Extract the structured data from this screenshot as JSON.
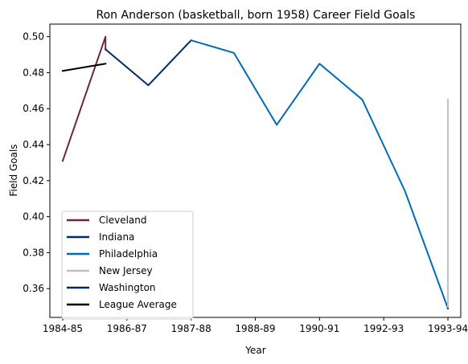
{
  "chart_data": {
    "type": "line",
    "title": "Ron Anderson (basketball, born 1958) Career Field Goals",
    "xlabel": "Year",
    "ylabel": "Field Goals",
    "x_ticks": [
      "1984-85",
      "1986-87",
      "1987-88",
      "1988-89",
      "1990-91",
      "1992-93",
      "1993-94"
    ],
    "xlim": [
      -0.3,
      9.3
    ],
    "ylim": [
      0.344,
      0.507
    ],
    "y_ticks": [
      0.36,
      0.38,
      0.4,
      0.42,
      0.44,
      0.46,
      0.48,
      0.5
    ],
    "grid": false,
    "legend_position": "lower-left",
    "series": [
      {
        "name": "Cleveland",
        "color": "#6f263d",
        "points": [
          [
            0,
            0.431
          ],
          [
            1,
            0.5
          ],
          [
            1,
            0.493
          ]
        ]
      },
      {
        "name": "Indiana",
        "color": "#002d62",
        "points": [
          [
            1,
            0.493
          ],
          [
            2,
            0.473
          ],
          [
            3,
            0.498
          ]
        ]
      },
      {
        "name": "Philadelphia",
        "color": "#006bb6",
        "points": [
          [
            3,
            0.498
          ],
          [
            4,
            0.491
          ],
          [
            5,
            0.451
          ],
          [
            6,
            0.485
          ],
          [
            7,
            0.465
          ],
          [
            8,
            0.414
          ],
          [
            9,
            0.349
          ]
        ]
      },
      {
        "name": "New Jersey",
        "color": "#bec0c2",
        "points": [
          [
            9,
            0.349
          ],
          [
            9,
            0.465
          ]
        ]
      },
      {
        "name": "Washington",
        "color": "#002b5c",
        "points": [
          [
            9,
            0.349
          ],
          [
            9,
            0.349
          ]
        ]
      },
      {
        "name": "League Average",
        "color": "#000000",
        "points": [
          [
            0,
            0.481
          ],
          [
            1,
            0.485
          ]
        ]
      }
    ]
  }
}
